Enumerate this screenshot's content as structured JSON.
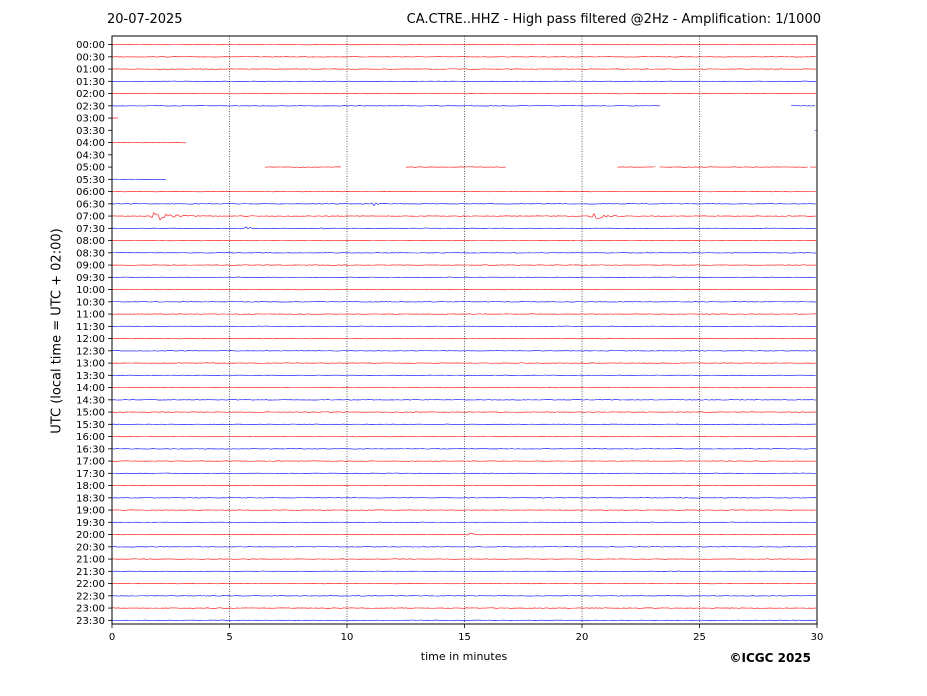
{
  "header": {
    "date": "20-07-2025",
    "title": "CA.CTRE..HHZ - High pass filtered @2Hz - Amplification: 1/1000"
  },
  "footer": {
    "copyright": "©ICGC 2025"
  },
  "colors": {
    "red_trace": "#ff0000",
    "blue_trace": "#0000ff",
    "grid": "#000000"
  },
  "chart_data": {
    "type": "line",
    "title": "CA.CTRE..HHZ - High pass filtered @2Hz - Amplification: 1/1000",
    "xlabel": "time in minutes",
    "ylabel": "UTC (local time = UTC + 02:00)",
    "xlim": [
      0,
      30
    ],
    "x_ticks": [
      "0",
      "5",
      "10",
      "15",
      "20",
      "25",
      "30"
    ],
    "x_grid": [
      5,
      10,
      15,
      20,
      25
    ],
    "rows": [
      "00:00",
      "00:30",
      "01:00",
      "01:30",
      "02:00",
      "02:30",
      "03:00",
      "03:30",
      "04:00",
      "04:30",
      "05:00",
      "05:30",
      "06:00",
      "06:30",
      "07:00",
      "07:30",
      "08:00",
      "08:30",
      "09:00",
      "09:30",
      "10:00",
      "10:30",
      "11:00",
      "11:30",
      "12:00",
      "12:30",
      "13:00",
      "13:30",
      "14:00",
      "14:30",
      "15:00",
      "15:30",
      "16:00",
      "16:30",
      "17:00",
      "17:30",
      "18:00",
      "18:30",
      "19:00",
      "19:30",
      "20:00",
      "20:30",
      "21:00",
      "21:30",
      "22:00",
      "22:30",
      "23:00",
      "23:30"
    ],
    "row_colors": [
      "red",
      "red",
      "red",
      "blue",
      "red",
      "blue",
      "red",
      "blue",
      "red",
      "blue",
      "red",
      "blue",
      "red",
      "blue",
      "red",
      "blue",
      "red",
      "blue",
      "red",
      "blue",
      "red",
      "blue",
      "red",
      "blue",
      "red",
      "blue",
      "red",
      "blue",
      "red",
      "blue",
      "red",
      "blue",
      "red",
      "blue",
      "red",
      "blue",
      "red",
      "blue",
      "red",
      "blue",
      "red",
      "blue",
      "red",
      "blue",
      "red",
      "blue",
      "red",
      "blue"
    ],
    "gaps": [
      {
        "row": "02:30",
        "from": 23.4,
        "to": 28.9
      },
      {
        "row": "03:00",
        "from": 0.3,
        "to": 30
      },
      {
        "row": "03:30",
        "from": 0,
        "to": 29.9
      },
      {
        "row": "04:00",
        "from": 3.2,
        "to": 30
      },
      {
        "row": "04:30",
        "from": 0,
        "to": 30
      },
      {
        "row": "05:00",
        "from": 0,
        "to": 6.5
      },
      {
        "row": "05:00",
        "from": 9.8,
        "to": 12.5
      },
      {
        "row": "05:00",
        "from": 16.8,
        "to": 21.5
      },
      {
        "row": "05:00",
        "from": 23.2,
        "to": 23.3
      },
      {
        "row": "05:00",
        "from": 29.6,
        "to": 29.7
      },
      {
        "row": "05:30",
        "from": 2.3,
        "to": 30
      }
    ],
    "events": [
      {
        "row": "06:30",
        "t": 11.0,
        "dur": 0.9,
        "amp": 2
      },
      {
        "row": "07:00",
        "t": 1.5,
        "dur": 2.2,
        "amp": 5
      },
      {
        "row": "07:00",
        "t": 20.3,
        "dur": 1.4,
        "amp": 4
      },
      {
        "row": "07:00",
        "t": 25.6,
        "dur": 0.3,
        "amp": 1.5
      },
      {
        "row": "07:30",
        "t": 5.4,
        "dur": 1.2,
        "amp": 2
      },
      {
        "row": "07:30",
        "t": 8.9,
        "dur": 0.5,
        "amp": 1
      },
      {
        "row": "11:30",
        "t": 8.0,
        "dur": 0.1,
        "amp": 1.2
      },
      {
        "row": "13:00",
        "t": 4.3,
        "dur": 0.5,
        "amp": 1.3
      },
      {
        "row": "16:00",
        "t": 10.3,
        "dur": 0.6,
        "amp": 1.2
      },
      {
        "row": "20:00",
        "t": 15.0,
        "dur": 1.0,
        "amp": 2
      },
      {
        "row": "20:00",
        "t": 16.8,
        "dur": 0.3,
        "amp": 1.2
      },
      {
        "row": "22:30",
        "t": 10.3,
        "dur": 0.8,
        "amp": 1.2
      }
    ]
  }
}
